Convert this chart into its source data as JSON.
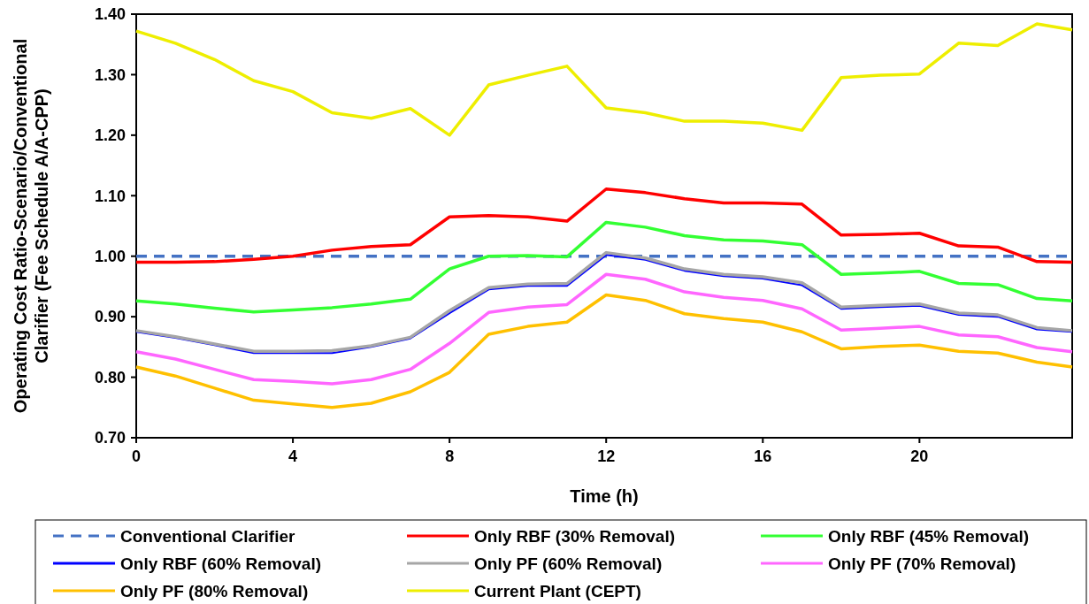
{
  "chart_data": {
    "type": "line",
    "xlabel": "Time (h)",
    "ylabel": "Operating Cost Ratio-Scenario/Conventional Clarifier (Fee Schedule A/A-CPP)",
    "x": [
      0,
      1,
      2,
      3,
      4,
      5,
      6,
      7,
      8,
      9,
      10,
      11,
      12,
      13,
      14,
      15,
      16,
      17,
      18,
      19,
      20,
      21,
      22,
      23,
      23.9
    ],
    "xlim": [
      0,
      23.9
    ],
    "xticks": [
      0,
      4,
      8,
      12,
      16,
      20
    ],
    "ylim": [
      0.7,
      1.4
    ],
    "yticks": [
      {
        "value": 0.7,
        "label": "0.70"
      },
      {
        "value": 0.8,
        "label": "0.80"
      },
      {
        "value": 0.9,
        "label": "0.90"
      },
      {
        "value": 1.0,
        "label": "1.00"
      },
      {
        "value": 1.1,
        "label": "1.10"
      },
      {
        "value": 1.2,
        "label": "1.20"
      },
      {
        "value": 1.3,
        "label": "1.30"
      },
      {
        "value": 1.4,
        "label": "1.40"
      }
    ],
    "legend": "bottom",
    "marker": "none",
    "series": [
      {
        "name": "Conventional Clarifier",
        "color": "#4472c4",
        "line_style": "dashed",
        "x": [
          0,
          23.9
        ],
        "values": [
          1.0,
          1.0
        ]
      },
      {
        "name": "Only RBF (30% Removal)",
        "color": "#ff0000",
        "values": [
          0.99,
          0.99,
          0.991,
          0.995,
          1.0,
          1.01,
          1.016,
          1.019,
          1.065,
          1.067,
          1.065,
          1.058,
          1.111,
          1.105,
          1.095,
          1.088,
          1.088,
          1.086,
          1.035,
          1.036,
          1.038,
          1.017,
          1.015,
          0.991,
          0.99
        ]
      },
      {
        "name": "Only RBF (45% Removal)",
        "color": "#33ff33",
        "values": [
          0.926,
          0.921,
          0.914,
          0.908,
          0.911,
          0.915,
          0.921,
          0.929,
          0.979,
          1.0,
          1.001,
          0.999,
          1.056,
          1.048,
          1.034,
          1.027,
          1.025,
          1.019,
          0.97,
          0.972,
          0.975,
          0.955,
          0.953,
          0.93,
          0.926
        ]
      },
      {
        "name": "Only RBF (60% Removal)",
        "color": "#0000ff",
        "values": [
          0.875,
          0.865,
          0.853,
          0.84,
          0.84,
          0.84,
          0.85,
          0.864,
          0.906,
          0.945,
          0.951,
          0.951,
          1.002,
          0.994,
          0.976,
          0.967,
          0.963,
          0.952,
          0.913,
          0.916,
          0.918,
          0.903,
          0.9,
          0.879,
          0.875
        ]
      },
      {
        "name": "Only PF (60% Removal)",
        "color": "#a6a6a6",
        "values": [
          0.877,
          0.867,
          0.855,
          0.843,
          0.843,
          0.844,
          0.852,
          0.866,
          0.91,
          0.948,
          0.954,
          0.955,
          1.006,
          0.997,
          0.979,
          0.97,
          0.966,
          0.956,
          0.916,
          0.919,
          0.921,
          0.906,
          0.903,
          0.882,
          0.877
        ]
      },
      {
        "name": "Only PF (70% Removal)",
        "color": "#ff66ff",
        "values": [
          0.842,
          0.83,
          0.813,
          0.796,
          0.793,
          0.789,
          0.796,
          0.813,
          0.856,
          0.907,
          0.916,
          0.92,
          0.97,
          0.962,
          0.941,
          0.932,
          0.927,
          0.913,
          0.878,
          0.881,
          0.884,
          0.87,
          0.867,
          0.849,
          0.842
        ]
      },
      {
        "name": "Only PF (80% Removal)",
        "color": "#ffc000",
        "values": [
          0.817,
          0.802,
          0.782,
          0.762,
          0.756,
          0.75,
          0.757,
          0.776,
          0.808,
          0.871,
          0.884,
          0.891,
          0.936,
          0.927,
          0.905,
          0.897,
          0.891,
          0.875,
          0.847,
          0.851,
          0.853,
          0.843,
          0.84,
          0.825,
          0.817
        ]
      },
      {
        "name": "Current Plant (CEPT)",
        "color": "#eeee00",
        "values": [
          1.372,
          1.352,
          1.325,
          1.29,
          1.272,
          1.237,
          1.228,
          1.244,
          1.2,
          1.283,
          1.299,
          1.314,
          1.245,
          1.237,
          1.223,
          1.223,
          1.22,
          1.208,
          1.295,
          1.299,
          1.301,
          1.352,
          1.348,
          1.384,
          1.374
        ]
      }
    ]
  }
}
